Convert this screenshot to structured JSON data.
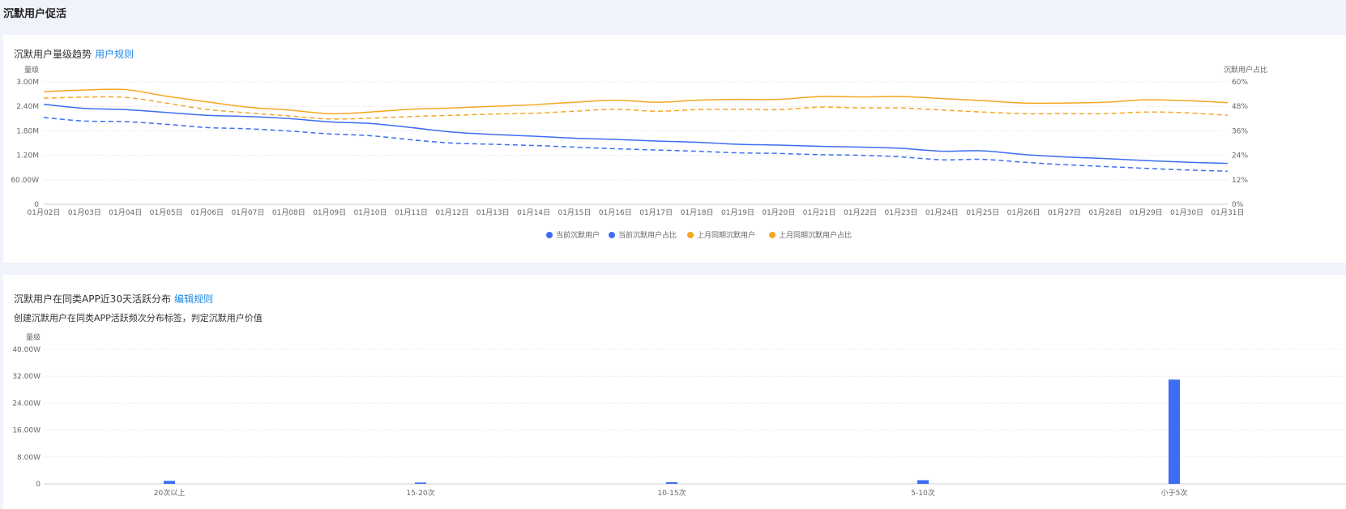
{
  "page": {
    "title": "沉默用户促活"
  },
  "trend": {
    "title": "沉默用户量级趋势",
    "rule_link": "用户规则",
    "left_axis_label": "量级",
    "right_axis_label": "沉默用户占比"
  },
  "dist": {
    "title": "沉默用户在同类APP近30天活跃分布",
    "rule_link": "编辑规则",
    "subtitle": "创建沉默用户在同类APP活跃频次分布标签，判定沉默用户价值",
    "axis_label": "量级"
  },
  "colors": {
    "blue": "#3d6df2",
    "orange": "#f5a623"
  },
  "chart_data": [
    {
      "type": "line",
      "x": [
        "01月02日",
        "01月03日",
        "01月04日",
        "01月05日",
        "01月06日",
        "01月07日",
        "01月08日",
        "01月09日",
        "01月10日",
        "01月11日",
        "01月12日",
        "01月13日",
        "01月14日",
        "01月15日",
        "01月16日",
        "01月17日",
        "01月18日",
        "01月19日",
        "01月20日",
        "01月21日",
        "01月22日",
        "01月23日",
        "01月24日",
        "01月25日",
        "01月26日",
        "01月27日",
        "01月28日",
        "01月29日",
        "01月30日",
        "01月31日"
      ],
      "y_left_ticks": [
        "0",
        "60.00W",
        "1.20M",
        "1.80M",
        "2.40M",
        "3.00M"
      ],
      "y_right_ticks": [
        "0%",
        "12%",
        "24%",
        "36%",
        "48%",
        "60%"
      ],
      "ylim_left": [
        0,
        3000000
      ],
      "ylim_right": [
        0,
        60
      ],
      "series": [
        {
          "name": "当前沉默用户",
          "axis": "left",
          "dash": false,
          "color": "#3d6df2",
          "values": [
            2450000,
            2350000,
            2320000,
            2250000,
            2180000,
            2150000,
            2100000,
            2020000,
            1980000,
            1880000,
            1770000,
            1710000,
            1670000,
            1620000,
            1590000,
            1550000,
            1520000,
            1470000,
            1450000,
            1420000,
            1400000,
            1370000,
            1300000,
            1310000,
            1220000,
            1160000,
            1120000,
            1070000,
            1030000,
            1000000
          ]
        },
        {
          "name": "当前沉默用户占比",
          "axis": "right",
          "dash": true,
          "color": "#3d6df2",
          "values": [
            42.5,
            40.8,
            40.5,
            39.2,
            37.6,
            37.0,
            35.9,
            34.5,
            33.6,
            31.6,
            30.0,
            29.4,
            28.8,
            28.0,
            27.2,
            26.6,
            26.0,
            25.2,
            24.9,
            24.3,
            24.0,
            23.2,
            21.8,
            22.0,
            20.6,
            19.4,
            18.5,
            17.6,
            16.8,
            16.2
          ]
        },
        {
          "name": "上月同期沉默用户",
          "axis": "left",
          "dash": false,
          "color": "#f5a623",
          "values": [
            2760000,
            2800000,
            2810000,
            2650000,
            2510000,
            2380000,
            2310000,
            2220000,
            2260000,
            2330000,
            2360000,
            2400000,
            2440000,
            2500000,
            2550000,
            2500000,
            2550000,
            2570000,
            2570000,
            2640000,
            2630000,
            2640000,
            2590000,
            2540000,
            2480000,
            2480000,
            2500000,
            2560000,
            2540000,
            2490000
          ]
        },
        {
          "name": "上月同期沉默用户占比",
          "axis": "right",
          "dash": true,
          "color": "#f5a623",
          "values": [
            52.0,
            52.5,
            52.4,
            49.6,
            46.5,
            44.8,
            43.3,
            41.8,
            42.2,
            43.0,
            43.6,
            44.2,
            44.6,
            45.6,
            46.6,
            45.6,
            46.4,
            46.6,
            46.4,
            47.6,
            47.2,
            47.2,
            46.2,
            45.2,
            44.4,
            44.4,
            44.4,
            45.2,
            44.8,
            43.6
          ]
        }
      ],
      "legend_position": "bottom-center"
    },
    {
      "type": "bar",
      "categories": [
        "20次以上",
        "15-20次",
        "10-15次",
        "5-10次",
        "小于5次"
      ],
      "values": [
        9000,
        4000,
        5000,
        11000,
        310000
      ],
      "y_ticks": [
        "0",
        "8.00W",
        "16.00W",
        "24.00W",
        "32.00W",
        "40.00W"
      ],
      "ylim": [
        0,
        400000
      ],
      "color": "#3d6df2"
    }
  ]
}
